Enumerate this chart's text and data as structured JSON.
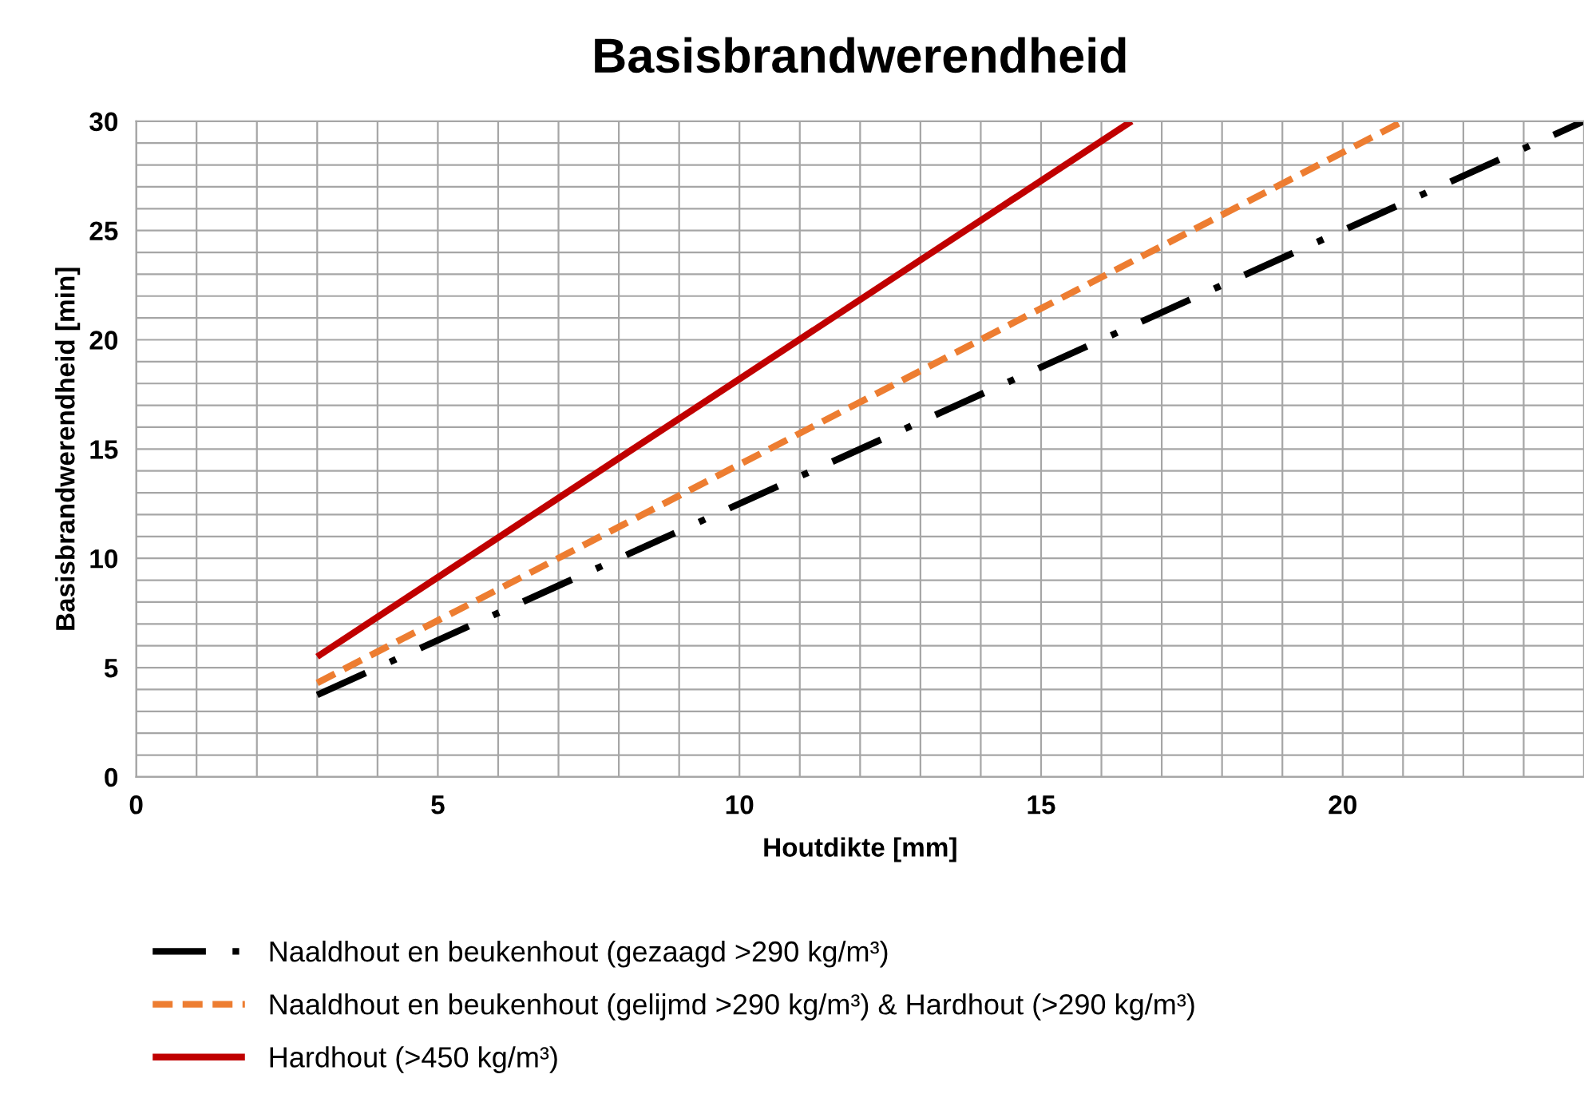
{
  "chart_data": {
    "type": "line",
    "title": "Basisbrandwerendheid",
    "xlabel": "Houtdikte [mm]",
    "ylabel": "Basisbrandwerendheid [min]",
    "xlim": [
      0,
      24
    ],
    "ylim": [
      0,
      30
    ],
    "xticks": [
      0,
      {
        "value": 1,
        "label": null
      },
      {
        "value": 2,
        "label": null
      },
      {
        "value": 3,
        "label": null
      },
      {
        "value": 4,
        "label": null
      },
      5,
      {
        "value": 6,
        "label": null
      },
      {
        "value": 7,
        "label": null
      },
      {
        "value": 8,
        "label": null
      },
      {
        "value": 9,
        "label": null
      },
      10,
      {
        "value": 11,
        "label": null
      },
      {
        "value": 12,
        "label": null
      },
      {
        "value": 13,
        "label": null
      },
      {
        "value": 14,
        "label": null
      },
      15,
      {
        "value": 16,
        "label": null
      },
      {
        "value": 17,
        "label": null
      },
      {
        "value": 18,
        "label": null
      },
      {
        "value": 19,
        "label": null
      },
      20,
      {
        "value": 21,
        "label": null
      },
      {
        "value": 22,
        "label": null
      },
      {
        "value": 23,
        "label": null
      },
      {
        "value": 24,
        "label": null
      }
    ],
    "yticks": [
      0,
      {
        "value": 1,
        "label": null
      },
      {
        "value": 2,
        "label": null
      },
      {
        "value": 3,
        "label": null
      },
      {
        "value": 4,
        "label": null
      },
      5,
      {
        "value": 6,
        "label": null
      },
      {
        "value": 7,
        "label": null
      },
      {
        "value": 8,
        "label": null
      },
      {
        "value": 9,
        "label": null
      },
      10,
      {
        "value": 11,
        "label": null
      },
      {
        "value": 12,
        "label": null
      },
      {
        "value": 13,
        "label": null
      },
      {
        "value": 14,
        "label": null
      },
      15,
      {
        "value": 16,
        "label": null
      },
      {
        "value": 17,
        "label": null
      },
      {
        "value": 18,
        "label": null
      },
      {
        "value": 19,
        "label": null
      },
      20,
      {
        "value": 21,
        "label": null
      },
      {
        "value": 22,
        "label": null
      },
      {
        "value": 23,
        "label": null
      },
      {
        "value": 24,
        "label": null
      },
      25,
      {
        "value": 26,
        "label": null
      },
      {
        "value": 27,
        "label": null
      },
      {
        "value": 28,
        "label": null
      },
      {
        "value": 29,
        "label": null
      },
      30
    ],
    "grid": true,
    "legend": "bottom",
    "marker": "none",
    "series": [
      {
        "name": "Naaldhout en beukenhout (gezaagd >290 kg/m³)",
        "color": "#000000",
        "line_style": "dashdot",
        "x": [
          3,
          24
        ],
        "values": [
          3.75,
          30
        ]
      },
      {
        "name": "Naaldhout en beukenhout (gelijmd >290 kg/m³) & Hardhout (>290 kg/m³)",
        "color": "#ed7d31",
        "line_style": "dashed",
        "x": [
          3,
          21
        ],
        "values": [
          4.3,
          30
        ]
      },
      {
        "name": "Hardhout (>450 kg/m³)",
        "color": "#c00000",
        "line_style": "solid",
        "x": [
          3,
          16.5
        ],
        "values": [
          5.5,
          30
        ]
      }
    ]
  }
}
